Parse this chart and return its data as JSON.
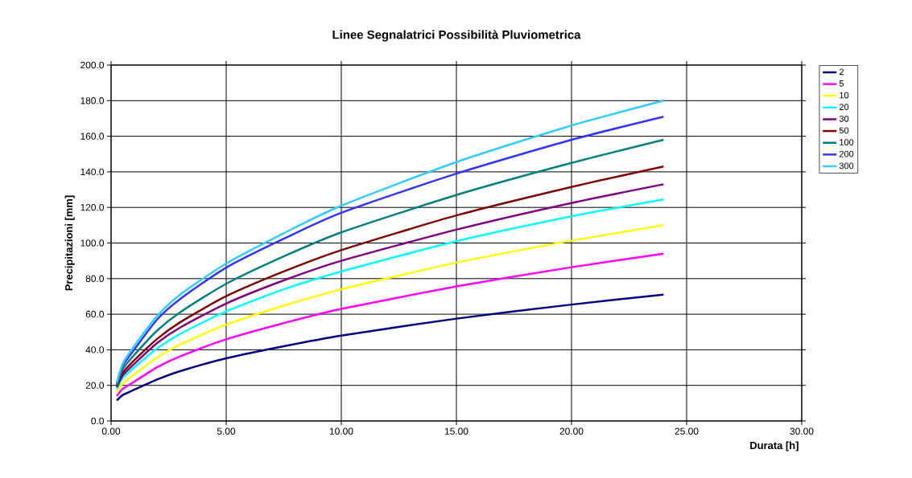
{
  "chart_data": {
    "type": "line",
    "title": "Linee Segnalatrici Possibilità Pluviometrica",
    "xlabel": "Durata [h]",
    "ylabel": "Precipitazioni [mm]",
    "x": [
      0.25,
      0.5,
      1,
      2,
      3,
      5,
      7.5,
      10,
      15,
      20,
      24
    ],
    "series": [
      {
        "name": "2",
        "color": "#000080",
        "values": [
          11.5,
          14.5,
          17.5,
          23.3,
          28.0,
          35.2,
          42.0,
          48,
          57.5,
          65.4,
          71
        ]
      },
      {
        "name": "5",
        "color": "#ff00ff",
        "values": [
          14,
          18,
          22,
          30.2,
          36.3,
          45.9,
          55.0,
          63,
          75.6,
          86.4,
          94
        ]
      },
      {
        "name": "10",
        "color": "#ffff00",
        "values": [
          16,
          21,
          26,
          35.7,
          42.9,
          54.1,
          64.8,
          74,
          89,
          101.3,
          110
        ]
      },
      {
        "name": "20",
        "color": "#00ffff",
        "values": [
          18,
          24,
          30,
          40.7,
          48.9,
          61.6,
          74,
          84,
          101,
          115,
          124.5
        ]
      },
      {
        "name": "30",
        "color": "#800080",
        "values": [
          19,
          25.5,
          32,
          43.8,
          52.5,
          66.0,
          79.0,
          90,
          107.5,
          122.5,
          133
        ]
      },
      {
        "name": "50",
        "color": "#800000",
        "values": [
          19.5,
          27,
          34,
          46.1,
          55.5,
          70.1,
          84,
          96,
          115.5,
          131.5,
          143
        ]
      },
      {
        "name": "100",
        "color": "#008080",
        "values": [
          20,
          29,
          37,
          50.8,
          61.1,
          77.1,
          92.5,
          106,
          127,
          145,
          158
        ]
      },
      {
        "name": "200",
        "color": "#3333ff",
        "values": [
          21,
          31,
          40,
          57,
          68.5,
          86.2,
          102.4,
          117,
          139,
          158,
          171
        ]
      },
      {
        "name": "300",
        "color": "#33ccff",
        "values": [
          21.5,
          32,
          42,
          59,
          71,
          88.5,
          105.5,
          121,
          145.5,
          166,
          180
        ]
      }
    ],
    "xlim": [
      0,
      30
    ],
    "ylim": [
      0,
      200
    ],
    "xticks": [
      {
        "value": 0,
        "label": "0.00"
      },
      {
        "value": 5,
        "label": "5.00"
      },
      {
        "value": 10,
        "label": "10.00"
      },
      {
        "value": 15,
        "label": "15.00"
      },
      {
        "value": 20,
        "label": "20.00"
      },
      {
        "value": 25,
        "label": "25.00"
      },
      {
        "value": 30,
        "label": "30.00"
      }
    ],
    "yticks": [
      {
        "value": 0,
        "label": "0.0"
      },
      {
        "value": 20,
        "label": "20.0"
      },
      {
        "value": 40,
        "label": "40.0"
      },
      {
        "value": 60,
        "label": "60.0"
      },
      {
        "value": 80,
        "label": "80.0"
      },
      {
        "value": 100,
        "label": "100.0"
      },
      {
        "value": 120,
        "label": "120.0"
      },
      {
        "value": 140,
        "label": "140.0"
      },
      {
        "value": 160,
        "label": "160.0"
      },
      {
        "value": 180,
        "label": "180.0"
      },
      {
        "value": 200,
        "label": "200.0"
      }
    ],
    "grid": true,
    "legend": "right",
    "marker": "none",
    "line_style": "solid"
  }
}
